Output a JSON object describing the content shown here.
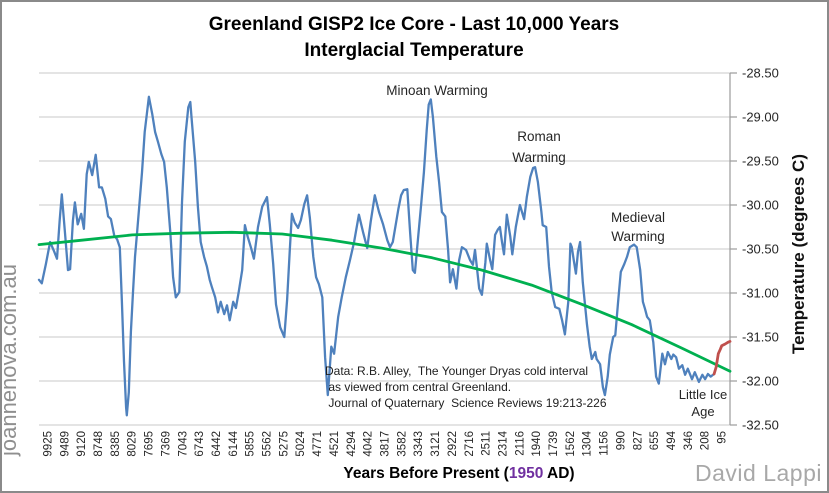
{
  "title": {
    "line1": "Greenland GISP2 Ice Core - Last 10,000 Years",
    "line2": "Interglacial Temperature"
  },
  "x_axis": {
    "title_prefix": "Years Before Present (",
    "title_year": "1950",
    "title_suffix": " AD)"
  },
  "y_axis": {
    "title": "Temperature (degrees C)"
  },
  "annotations": {
    "minoan": "Minoan Warming",
    "roman": "Roman\nWarming",
    "medieval": "Medieval\nWarming",
    "little_ice_age": "Little Ice\nAge",
    "source_note": "Data: R.B. Alley,  The Younger Dryas cold interval\n as viewed from central Greenland.\n Journal of Quaternary  Science Reviews 19:213-226"
  },
  "watermark": "joannenova.com.au",
  "credit": "David Lappi",
  "colors": {
    "temperature_line": "#4F81BD",
    "trend_line": "#00B050",
    "recent_warming_line": "#C0504D",
    "gridline": "#c9c9c9",
    "axis": "#9b9b9b",
    "year_accent": "#7030A0",
    "text": "#262626"
  },
  "chart_data": {
    "type": "line",
    "title": "Greenland GISP2 Ice Core - Last 10,000 Years Interglacial Temperature",
    "xlabel": "Years Before Present (1950 AD)",
    "ylabel": "Temperature (degrees C)",
    "ylim": [
      -32.5,
      -28.5
    ],
    "grid": true,
    "legend": false,
    "y_ticks": [
      -28.5,
      -29,
      -29.5,
      -30,
      -30.5,
      -31,
      -31.5,
      -32,
      -32.5
    ],
    "y_tick_labels": [
      "-28.50",
      "-29.00",
      "-29.50",
      "-30.00",
      "-30.50",
      "-31.00",
      "-31.50",
      "-32.00",
      "-32.50"
    ],
    "x_tick_labels": [
      "9925",
      "9489",
      "9120",
      "8748",
      "8385",
      "8029",
      "7695",
      "7369",
      "7043",
      "6743",
      "6442",
      "6144",
      "5855",
      "5562",
      "5275",
      "5024",
      "4771",
      "4521",
      "4294",
      "4042",
      "3817",
      "3582",
      "3343",
      "3121",
      "2922",
      "2716",
      "2511",
      "2314",
      "2116",
      "1940",
      "1739",
      "1562",
      "1304",
      "1156",
      "990",
      "827",
      "655",
      "494",
      "346",
      "208",
      "95"
    ],
    "series": [
      {
        "id": "temperature",
        "name": "GISP2 ice core temperature (blue)",
        "color": "#4F81BD",
        "width": 2.3,
        "points": [
          [
            0.0,
            -30.85
          ],
          [
            0.004,
            -30.89
          ],
          [
            0.01,
            -30.67
          ],
          [
            0.016,
            -30.42
          ],
          [
            0.022,
            -30.53
          ],
          [
            0.026,
            -30.61
          ],
          [
            0.03,
            -30.17
          ],
          [
            0.033,
            -29.88
          ],
          [
            0.038,
            -30.36
          ],
          [
            0.042,
            -30.74
          ],
          [
            0.045,
            -30.73
          ],
          [
            0.049,
            -30.18
          ],
          [
            0.052,
            -29.97
          ],
          [
            0.056,
            -30.22
          ],
          [
            0.061,
            -30.1
          ],
          [
            0.065,
            -30.27
          ],
          [
            0.069,
            -29.65
          ],
          [
            0.072,
            -29.51
          ],
          [
            0.077,
            -29.66
          ],
          [
            0.082,
            -29.43
          ],
          [
            0.087,
            -29.8
          ],
          [
            0.091,
            -29.8
          ],
          [
            0.096,
            -29.93
          ],
          [
            0.1,
            -30.13
          ],
          [
            0.104,
            -30.16
          ],
          [
            0.109,
            -30.35
          ],
          [
            0.113,
            -30.39
          ],
          [
            0.117,
            -30.48
          ],
          [
            0.12,
            -31.1
          ],
          [
            0.123,
            -31.78
          ],
          [
            0.126,
            -32.3
          ],
          [
            0.127,
            -32.39
          ],
          [
            0.13,
            -32.13
          ],
          [
            0.133,
            -31.44
          ],
          [
            0.136,
            -30.99
          ],
          [
            0.139,
            -30.59
          ],
          [
            0.142,
            -30.31
          ],
          [
            0.145,
            -30.02
          ],
          [
            0.149,
            -29.63
          ],
          [
            0.153,
            -29.17
          ],
          [
            0.156,
            -28.97
          ],
          [
            0.159,
            -28.77
          ],
          [
            0.164,
            -28.97
          ],
          [
            0.168,
            -29.17
          ],
          [
            0.172,
            -29.28
          ],
          [
            0.177,
            -29.42
          ],
          [
            0.181,
            -29.51
          ],
          [
            0.185,
            -29.8
          ],
          [
            0.19,
            -30.31
          ],
          [
            0.194,
            -30.82
          ],
          [
            0.198,
            -31.05
          ],
          [
            0.203,
            -30.99
          ],
          [
            0.207,
            -29.97
          ],
          [
            0.211,
            -29.28
          ],
          [
            0.216,
            -28.89
          ],
          [
            0.219,
            -28.83
          ],
          [
            0.221,
            -29.03
          ],
          [
            0.226,
            -29.51
          ],
          [
            0.23,
            -30.02
          ],
          [
            0.234,
            -30.42
          ],
          [
            0.239,
            -30.59
          ],
          [
            0.243,
            -30.7
          ],
          [
            0.247,
            -30.85
          ],
          [
            0.25,
            -30.93
          ],
          [
            0.255,
            -31.05
          ],
          [
            0.259,
            -31.22
          ],
          [
            0.263,
            -31.1
          ],
          [
            0.268,
            -31.24
          ],
          [
            0.272,
            -31.14
          ],
          [
            0.276,
            -31.31
          ],
          [
            0.281,
            -31.1
          ],
          [
            0.285,
            -31.17
          ],
          [
            0.289,
            -30.99
          ],
          [
            0.294,
            -30.74
          ],
          [
            0.298,
            -30.23
          ],
          [
            0.302,
            -30.36
          ],
          [
            0.307,
            -30.49
          ],
          [
            0.311,
            -30.61
          ],
          [
            0.317,
            -30.25
          ],
          [
            0.323,
            -30.02
          ],
          [
            0.33,
            -29.91
          ],
          [
            0.334,
            -30.22
          ],
          [
            0.339,
            -30.67
          ],
          [
            0.343,
            -31.13
          ],
          [
            0.349,
            -31.39
          ],
          [
            0.355,
            -31.5
          ],
          [
            0.359,
            -31.08
          ],
          [
            0.363,
            -30.51
          ],
          [
            0.366,
            -30.1
          ],
          [
            0.37,
            -30.2
          ],
          [
            0.375,
            -30.26
          ],
          [
            0.379,
            -30.17
          ],
          [
            0.384,
            -29.99
          ],
          [
            0.388,
            -29.89
          ],
          [
            0.392,
            -30.15
          ],
          [
            0.397,
            -30.59
          ],
          [
            0.401,
            -30.82
          ],
          [
            0.405,
            -30.9
          ],
          [
            0.41,
            -31.05
          ],
          [
            0.414,
            -31.73
          ],
          [
            0.418,
            -32.16
          ],
          [
            0.423,
            -31.61
          ],
          [
            0.427,
            -31.69
          ],
          [
            0.433,
            -31.27
          ],
          [
            0.438,
            -31.05
          ],
          [
            0.444,
            -30.82
          ],
          [
            0.45,
            -30.63
          ],
          [
            0.456,
            -30.42
          ],
          [
            0.463,
            -30.11
          ],
          [
            0.469,
            -30.31
          ],
          [
            0.475,
            -30.49
          ],
          [
            0.48,
            -30.19
          ],
          [
            0.486,
            -29.89
          ],
          [
            0.492,
            -30.08
          ],
          [
            0.498,
            -30.22
          ],
          [
            0.504,
            -30.4
          ],
          [
            0.508,
            -30.48
          ],
          [
            0.512,
            -30.42
          ],
          [
            0.515,
            -30.28
          ],
          [
            0.52,
            -30.05
          ],
          [
            0.524,
            -29.89
          ],
          [
            0.528,
            -29.83
          ],
          [
            0.533,
            -29.82
          ],
          [
            0.537,
            -30.31
          ],
          [
            0.541,
            -30.74
          ],
          [
            0.544,
            -30.77
          ],
          [
            0.548,
            -30.42
          ],
          [
            0.553,
            -30.0
          ],
          [
            0.557,
            -29.63
          ],
          [
            0.561,
            -29.15
          ],
          [
            0.564,
            -28.86
          ],
          [
            0.567,
            -28.8
          ],
          [
            0.57,
            -29.0
          ],
          [
            0.575,
            -29.45
          ],
          [
            0.579,
            -29.74
          ],
          [
            0.583,
            -30.08
          ],
          [
            0.588,
            -30.13
          ],
          [
            0.592,
            -30.51
          ],
          [
            0.595,
            -30.88
          ],
          [
            0.599,
            -30.73
          ],
          [
            0.604,
            -30.95
          ],
          [
            0.608,
            -30.63
          ],
          [
            0.612,
            -30.48
          ],
          [
            0.618,
            -30.51
          ],
          [
            0.624,
            -30.63
          ],
          [
            0.628,
            -30.68
          ],
          [
            0.631,
            -30.51
          ],
          [
            0.637,
            -30.95
          ],
          [
            0.641,
            -31.02
          ],
          [
            0.646,
            -30.65
          ],
          [
            0.648,
            -30.44
          ],
          [
            0.653,
            -30.63
          ],
          [
            0.656,
            -30.73
          ],
          [
            0.66,
            -30.34
          ],
          [
            0.664,
            -30.28
          ],
          [
            0.667,
            -30.25
          ],
          [
            0.67,
            -30.42
          ],
          [
            0.673,
            -30.56
          ],
          [
            0.677,
            -30.11
          ],
          [
            0.682,
            -30.36
          ],
          [
            0.685,
            -30.56
          ],
          [
            0.69,
            -30.25
          ],
          [
            0.696,
            -30.0
          ],
          [
            0.699,
            -30.08
          ],
          [
            0.702,
            -30.16
          ],
          [
            0.706,
            -29.91
          ],
          [
            0.711,
            -29.68
          ],
          [
            0.715,
            -29.58
          ],
          [
            0.718,
            -29.57
          ],
          [
            0.722,
            -29.74
          ],
          [
            0.727,
            -30.08
          ],
          [
            0.729,
            -30.23
          ],
          [
            0.734,
            -30.25
          ],
          [
            0.738,
            -30.7
          ],
          [
            0.742,
            -30.99
          ],
          [
            0.747,
            -31.16
          ],
          [
            0.753,
            -31.18
          ],
          [
            0.757,
            -31.31
          ],
          [
            0.761,
            -31.47
          ],
          [
            0.766,
            -31.1
          ],
          [
            0.769,
            -30.44
          ],
          [
            0.771,
            -30.48
          ],
          [
            0.774,
            -30.63
          ],
          [
            0.777,
            -30.78
          ],
          [
            0.78,
            -30.53
          ],
          [
            0.783,
            -30.42
          ],
          [
            0.787,
            -30.88
          ],
          [
            0.793,
            -31.36
          ],
          [
            0.797,
            -31.61
          ],
          [
            0.8,
            -31.75
          ],
          [
            0.805,
            -31.67
          ],
          [
            0.807,
            -31.75
          ],
          [
            0.812,
            -31.81
          ],
          [
            0.816,
            -32.07
          ],
          [
            0.819,
            -32.16
          ],
          [
            0.823,
            -31.95
          ],
          [
            0.826,
            -31.7
          ],
          [
            0.831,
            -31.5
          ],
          [
            0.834,
            -31.48
          ],
          [
            0.838,
            -31.1
          ],
          [
            0.842,
            -30.76
          ],
          [
            0.847,
            -30.67
          ],
          [
            0.851,
            -30.59
          ],
          [
            0.855,
            -30.48
          ],
          [
            0.861,
            -30.45
          ],
          [
            0.865,
            -30.48
          ],
          [
            0.87,
            -30.74
          ],
          [
            0.874,
            -31.1
          ],
          [
            0.877,
            -31.18
          ],
          [
            0.88,
            -31.27
          ],
          [
            0.884,
            -31.31
          ],
          [
            0.889,
            -31.56
          ],
          [
            0.893,
            -31.95
          ],
          [
            0.897,
            -32.03
          ],
          [
            0.902,
            -31.69
          ],
          [
            0.906,
            -31.81
          ],
          [
            0.91,
            -31.67
          ],
          [
            0.915,
            -31.75
          ],
          [
            0.918,
            -31.7
          ],
          [
            0.922,
            -31.73
          ],
          [
            0.926,
            -31.86
          ],
          [
            0.931,
            -31.82
          ],
          [
            0.935,
            -31.93
          ],
          [
            0.939,
            -31.86
          ],
          [
            0.945,
            -31.98
          ],
          [
            0.949,
            -31.9
          ],
          [
            0.955,
            -32.01
          ],
          [
            0.96,
            -31.93
          ],
          [
            0.964,
            -31.98
          ],
          [
            0.968,
            -31.92
          ],
          [
            0.972,
            -31.95
          ],
          [
            0.977,
            -31.92
          ]
        ]
      },
      {
        "id": "trend",
        "name": "smoothed long-term trend (green)",
        "color": "#00B050",
        "width": 2.8,
        "points": [
          [
            0.0,
            -30.45
          ],
          [
            0.062,
            -30.4
          ],
          [
            0.135,
            -30.34
          ],
          [
            0.207,
            -30.32
          ],
          [
            0.279,
            -30.31
          ],
          [
            0.352,
            -30.33
          ],
          [
            0.424,
            -30.4
          ],
          [
            0.496,
            -30.49
          ],
          [
            0.569,
            -30.6
          ],
          [
            0.641,
            -30.74
          ],
          [
            0.713,
            -30.91
          ],
          [
            0.786,
            -31.13
          ],
          [
            0.858,
            -31.36
          ],
          [
            0.931,
            -31.63
          ],
          [
            1.0,
            -31.89
          ]
        ]
      },
      {
        "id": "recent_warming",
        "name": "recent warming segment (red)",
        "color": "#C0504D",
        "width": 2.8,
        "points": [
          [
            0.977,
            -31.92
          ],
          [
            0.98,
            -31.84
          ],
          [
            0.983,
            -31.69
          ],
          [
            0.986,
            -31.64
          ],
          [
            0.988,
            -31.6
          ],
          [
            0.993,
            -31.58
          ],
          [
            0.997,
            -31.56
          ],
          [
            1.0,
            -31.55
          ]
        ]
      }
    ]
  }
}
